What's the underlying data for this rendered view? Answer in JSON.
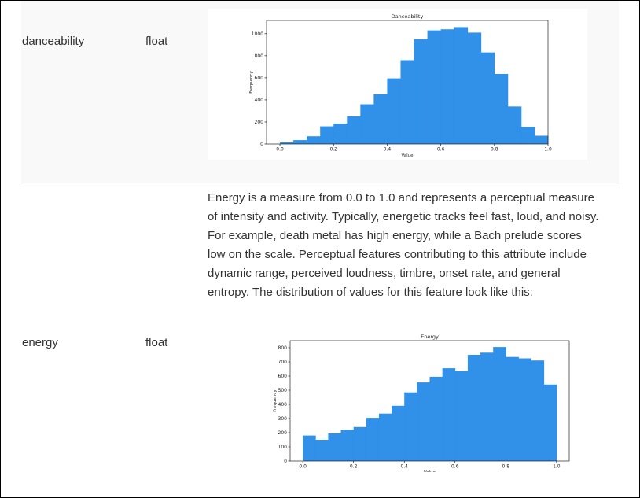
{
  "rows": [
    {
      "name": "danceability",
      "type": "float",
      "description": ""
    },
    {
      "name": "energy",
      "type": "float",
      "description": "Energy is a measure from 0.0 to 1.0 and represents a perceptual measure of intensity and activity. Typically, energetic tracks feel fast, loud, and noisy. For example, death metal has high energy, while a Bach prelude scores low on the scale. Perceptual features contributing to this attribute include dynamic range, perceived loudness, timbre, onset rate, and general entropy. The distribution of values for this feature look like this:"
    }
  ],
  "chart_data": [
    {
      "type": "bar",
      "title": "Danceability",
      "xlabel": "Value",
      "ylabel": "Frequency",
      "bar_color": "#3190e8",
      "bin_width": 0.05,
      "bin_starts": [
        0.0,
        0.05,
        0.1,
        0.15,
        0.2,
        0.25,
        0.3,
        0.35,
        0.4,
        0.45,
        0.5,
        0.55,
        0.6,
        0.65,
        0.7,
        0.75,
        0.8,
        0.85,
        0.9,
        0.95
      ],
      "values": [
        15,
        35,
        70,
        160,
        185,
        250,
        360,
        450,
        595,
        760,
        950,
        1030,
        1040,
        1060,
        1010,
        830,
        635,
        340,
        155,
        75
      ],
      "xlim": [
        -0.05,
        1.0
      ],
      "ylim": [
        0,
        1120
      ],
      "xticks": [
        "0.0",
        "0.2",
        "0.4",
        "0.6",
        "0.8",
        "1.0"
      ],
      "yticks": [
        "0",
        "200",
        "400",
        "600",
        "800",
        "1000"
      ],
      "grid": false
    },
    {
      "type": "bar",
      "title": "Energy",
      "xlabel": "Value",
      "ylabel": "Frequency",
      "bar_color": "#3190e8",
      "bin_width": 0.05,
      "bin_starts": [
        0.0,
        0.05,
        0.1,
        0.15,
        0.2,
        0.25,
        0.3,
        0.35,
        0.4,
        0.45,
        0.5,
        0.55,
        0.6,
        0.65,
        0.7,
        0.75,
        0.8,
        0.85,
        0.9,
        0.95
      ],
      "values": [
        180,
        150,
        195,
        220,
        240,
        305,
        335,
        390,
        485,
        555,
        595,
        655,
        635,
        750,
        765,
        805,
        735,
        725,
        710,
        540
      ],
      "xlim": [
        -0.05,
        1.05
      ],
      "ylim": [
        0,
        850
      ],
      "xticks": [
        "0.0",
        "0.2",
        "0.4",
        "0.6",
        "0.8",
        "1.0"
      ],
      "yticks": [
        "0",
        "100",
        "200",
        "300",
        "400",
        "500",
        "600",
        "700",
        "800"
      ],
      "grid": false
    }
  ]
}
